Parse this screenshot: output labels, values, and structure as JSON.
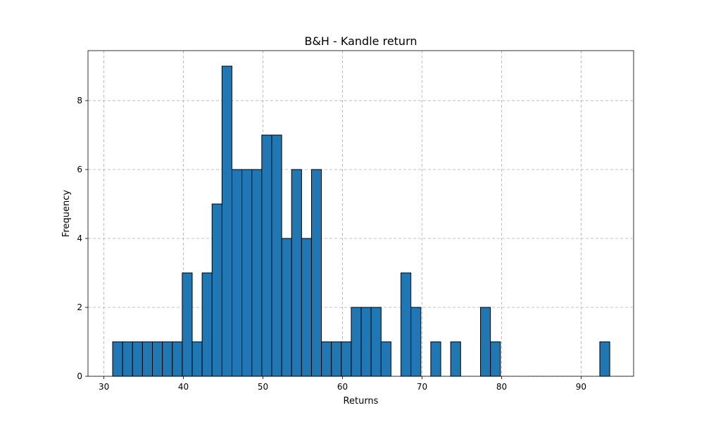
{
  "chart_data": {
    "type": "bar",
    "title": "B&H - Kandle return",
    "xlabel": "Returns",
    "ylabel": "Frequency",
    "xlim": [
      28.0,
      96.6
    ],
    "ylim": [
      0,
      9.45
    ],
    "xticks": [
      30,
      40,
      50,
      60,
      70,
      80,
      90
    ],
    "yticks": [
      0,
      2,
      4,
      6,
      8
    ],
    "grid": true,
    "bar_color": "#1f77b4",
    "edge_color": "#000000",
    "bin_start": 31.1,
    "bin_width": 1.25,
    "values": [
      1,
      1,
      1,
      1,
      1,
      1,
      1,
      3,
      1,
      3,
      5,
      9,
      6,
      6,
      6,
      7,
      7,
      4,
      6,
      4,
      6,
      1,
      1,
      1,
      2,
      2,
      2,
      1,
      0,
      3,
      2,
      0,
      1,
      0,
      1,
      0,
      0,
      2,
      1,
      0,
      0,
      0,
      0,
      0,
      0,
      0,
      0,
      0,
      0,
      1
    ]
  }
}
